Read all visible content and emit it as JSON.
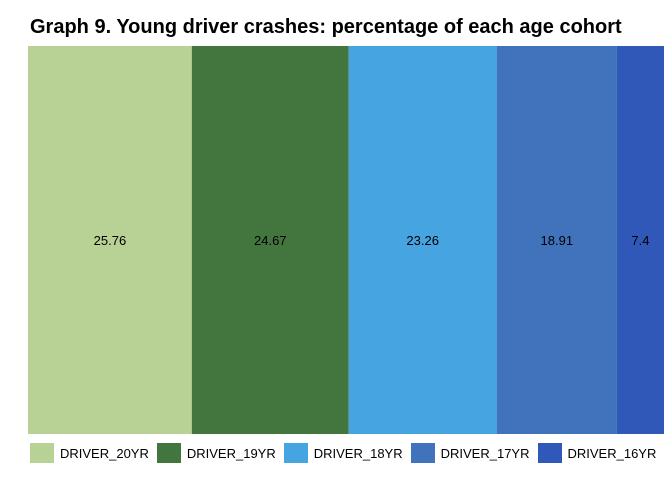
{
  "chart_data": {
    "type": "bar",
    "stacked": true,
    "orientation": "horizontal-stacked",
    "title": "Graph 9. Young driver crashes: percentage of each age cohort",
    "xlabel": "",
    "ylabel": "",
    "grid": false,
    "legend_position": "bottom",
    "series": [
      {
        "name": "DRIVER_20YR",
        "value": 25.76,
        "label": "25.76",
        "color": "#b8d195"
      },
      {
        "name": "DRIVER_19YR",
        "value": 24.67,
        "label": "24.67",
        "color": "#43763e"
      },
      {
        "name": "DRIVER_18YR",
        "value": 23.26,
        "label": "23.26",
        "color": "#46a4e0"
      },
      {
        "name": "DRIVER_17YR",
        "value": 18.91,
        "label": "18.91",
        "color": "#4073bb"
      },
      {
        "name": "DRIVER_16YR",
        "value": 7.4,
        "label": "7.4",
        "color": "#3058b8"
      }
    ]
  }
}
